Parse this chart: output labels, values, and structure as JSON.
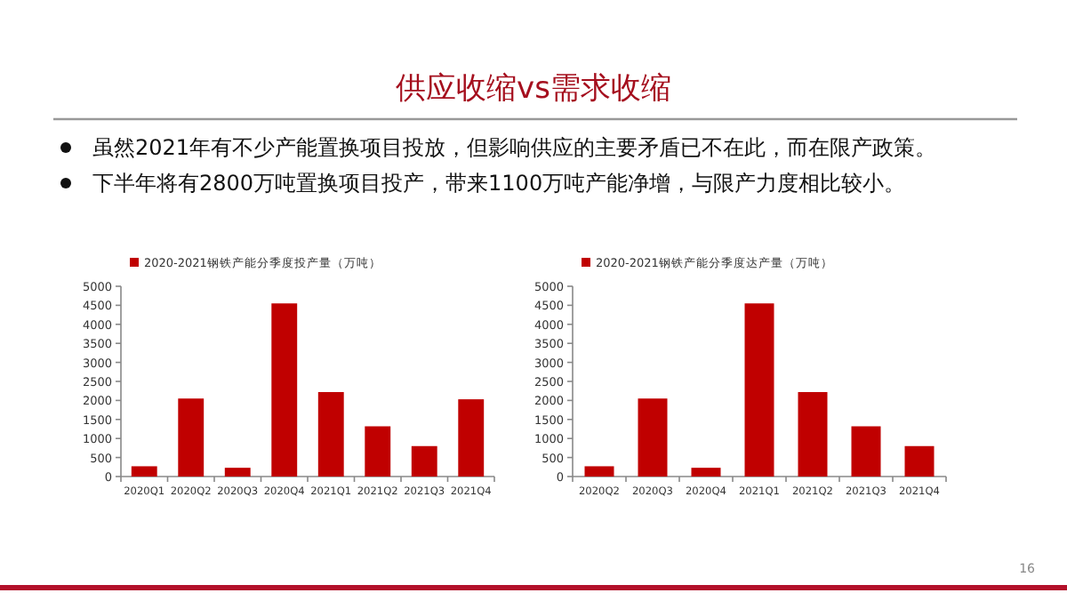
{
  "chart_data": [
    {
      "type": "other",
      "title": "供应收缩vs需求收缩",
      "annotations": [
        "虽然2021年有不少产能置换项目投放，但影响供应的主要矛盾已不在此，而在限产政策。",
        "下半年将有2800万吨置换项目投产，带来1100万吨产能净增，与限产力度相比较小。",
        "16"
      ]
    },
    {
      "type": "bar",
      "categories": [
        "2020Q1",
        "2020Q2",
        "2020Q3",
        "2020Q4",
        "2021Q1",
        "2021Q2",
        "2021Q3",
        "2021Q4"
      ],
      "series": [
        {
          "name": "2020-2021钢铁产能分季度投产量（万吨）",
          "color": "#c00000",
          "values": [
            270,
            2050,
            230,
            4550,
            2220,
            1320,
            800,
            2030
          ]
        }
      ],
      "ylim": [
        0,
        5000
      ],
      "yticks": [
        0,
        500,
        1000,
        1500,
        2000,
        2500,
        3000,
        3500,
        4000,
        4500,
        5000
      ],
      "legend": "top"
    },
    {
      "type": "bar",
      "categories": [
        "2020Q2",
        "2020Q3",
        "2020Q4",
        "2021Q1",
        "2021Q2",
        "2021Q3",
        "2021Q4"
      ],
      "series": [
        {
          "name": "2020-2021钢铁产能分季度达产量（万吨）",
          "color": "#c00000",
          "values": [
            270,
            2050,
            230,
            4550,
            2220,
            1320,
            800
          ]
        }
      ],
      "ylim": [
        0,
        5000
      ],
      "yticks": [
        0,
        500,
        1000,
        1500,
        2000,
        2500,
        3000,
        3500,
        4000,
        4500,
        5000
      ],
      "legend": "top"
    }
  ]
}
